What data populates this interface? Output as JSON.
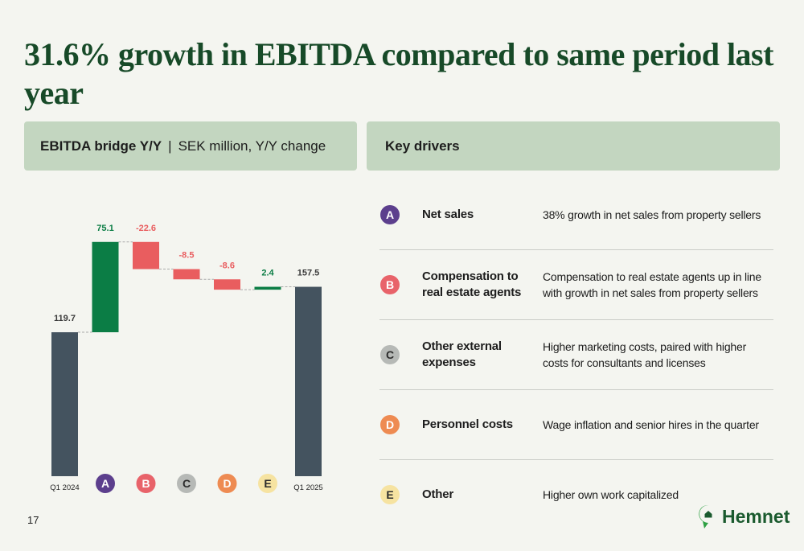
{
  "title": "31.6% growth in EBITDA compared to same period last year",
  "chart_panel": {
    "heading": "EBITDA bridge Y/Y",
    "separator": "|",
    "subheading": "SEK million, Y/Y change"
  },
  "chart_data": {
    "type": "waterfall",
    "categories": [
      "Q1 2024",
      "A",
      "B",
      "C",
      "D",
      "E",
      "Q1 2025"
    ],
    "values": [
      119.7,
      75.1,
      -22.6,
      -8.5,
      -8.6,
      2.4,
      157.5
    ],
    "colors": {
      "total": "#44535f",
      "increase": "#0b7d45",
      "decrease": "#e95d5f"
    }
  },
  "drivers_panel": {
    "heading": "Key drivers"
  },
  "drivers": [
    {
      "letter": "A",
      "color": "#5c3f8d",
      "text_color": "#ffffff",
      "name": "Net sales",
      "description": "38% growth in net sales from property sellers"
    },
    {
      "letter": "B",
      "color": "#e8636a",
      "text_color": "#ffffff",
      "name": "Compensation to real estate agents",
      "description": "Compensation to real estate agents up in line with growth in net sales from property sellers"
    },
    {
      "letter": "C",
      "color": "#b6b9b6",
      "text_color": "#2b2b2b",
      "name": "Other external expenses",
      "description": "Higher marketing costs, paired with higher costs for consultants and licenses"
    },
    {
      "letter": "D",
      "color": "#ee8b52",
      "text_color": "#ffffff",
      "name": "Personnel costs",
      "description": "Wage inflation and senior hires in the quarter"
    },
    {
      "letter": "E",
      "color": "#f6e3a1",
      "text_color": "#2b2b2b",
      "name": "Other",
      "description": "Higher own work capitalized"
    }
  ],
  "page_number": "17",
  "logo": "Hemnet"
}
